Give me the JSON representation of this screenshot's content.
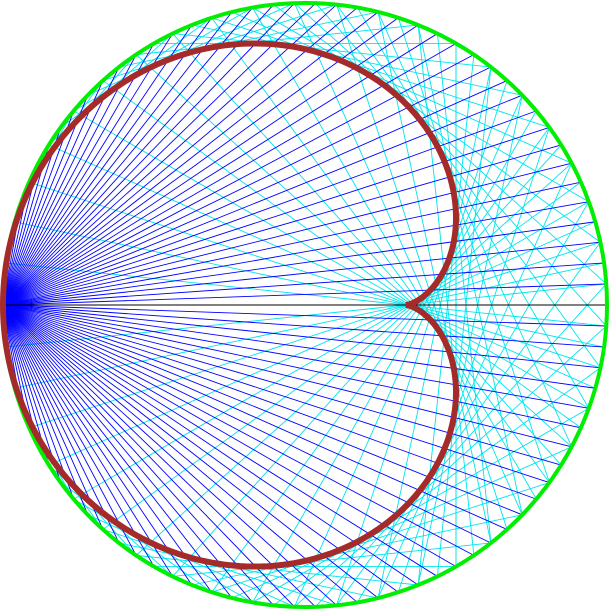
{
  "diagram": {
    "type": "cardioid caustic of a circle",
    "ray_count": 90,
    "colors": {
      "circle": "#00ee00",
      "incident_rays": "#0000ff",
      "reflected_rays": "#00e5ee",
      "axis_ray": "#000000",
      "caustic": "#a52a2a",
      "background": "#ffffff"
    }
  }
}
